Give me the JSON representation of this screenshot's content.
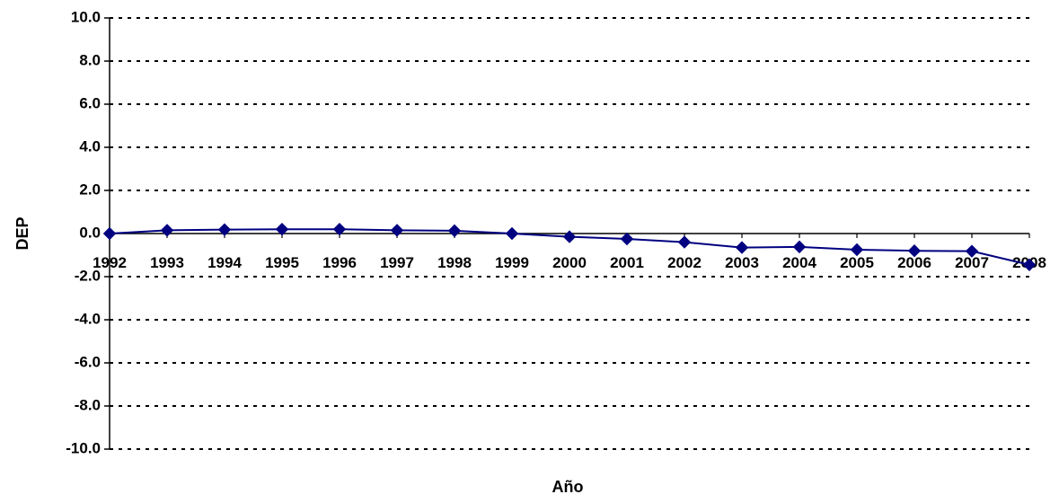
{
  "chart_data": {
    "type": "line",
    "title": "",
    "xlabel": "Año",
    "ylabel": "DEP",
    "ylim": [
      -10.0,
      10.0
    ],
    "y_ticks": [
      "10.0",
      "8.0",
      "6.0",
      "4.0",
      "2.0",
      "0.0",
      "-2.0",
      "-4.0",
      "-6.0",
      "-8.0",
      "-10.0"
    ],
    "y_tick_values": [
      10,
      8,
      6,
      4,
      2,
      0,
      -2,
      -4,
      -6,
      -8,
      -10
    ],
    "grid": "horizontal dashed",
    "legend": "none",
    "categories": [
      "1992",
      "1993",
      "1994",
      "1995",
      "1996",
      "1997",
      "1998",
      "1999",
      "2000",
      "2001",
      "2002",
      "2003",
      "2004",
      "2005",
      "2006",
      "2007",
      "2008"
    ],
    "series": [
      {
        "values": [
          0.0,
          0.15,
          0.18,
          0.2,
          0.2,
          0.15,
          0.13,
          0.0,
          -0.15,
          -0.25,
          -0.4,
          -0.65,
          -0.62,
          -0.75,
          -0.8,
          -0.82,
          -1.45
        ]
      }
    ],
    "colors": {
      "line": "#000080",
      "marker": "#000080",
      "grid": "#000000",
      "axis": "#000000"
    }
  }
}
